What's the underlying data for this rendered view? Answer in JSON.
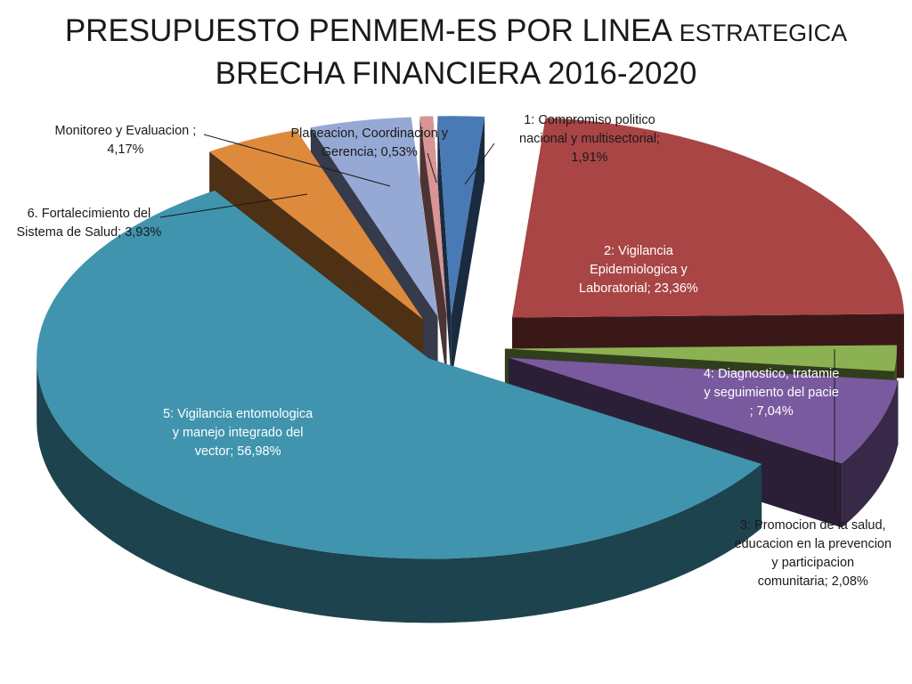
{
  "title": {
    "line1_main": "PRESUPUESTO PENMEM-ES POR LINEA",
    "line1_small": "ESTRATEGICA",
    "line2": "BRECHA FINANCIERA 2016-2020"
  },
  "chart_data": {
    "type": "pie",
    "style": "3d-exploded",
    "title": "PRESUPUESTO PENMEM-ES POR LINEA ESTRATEGICA BRECHA FINANCIERA 2016-2020",
    "slices": [
      {
        "label_lines": [
          "1: Compromiso politico",
          "nacional y multisectorial;",
          "1,91%"
        ],
        "value": 1.91,
        "color": "#4a7ab5"
      },
      {
        "label_lines": [
          "2: Vigilancia",
          "Epidemiologica y",
          "Laboratorial; 23,36%"
        ],
        "value": 23.36,
        "color": "#a94545"
      },
      {
        "label_lines": [
          "3: Promocion de la salud,",
          "educacion en la prevencion",
          "y participacion",
          "comunitaria; 2,08%"
        ],
        "value": 2.08,
        "color": "#8cb152"
      },
      {
        "label_lines": [
          "4: Diagnostico, tratamie",
          "y seguimiento del pacie",
          "; 7,04%"
        ],
        "value": 7.04,
        "color": "#7a5a9e"
      },
      {
        "label_lines": [
          "5: Vigilancia entomologica",
          "y manejo integrado del",
          "vector; 56,98%"
        ],
        "value": 56.98,
        "color": "#4094ae"
      },
      {
        "label_lines": [
          "6. Fortalecimiento del",
          "Sistema de Salud; 3,93%"
        ],
        "value": 3.93,
        "color": "#de8a3c"
      },
      {
        "label_lines": [
          "Monitoreo y Evaluacion ;",
          "4,17%"
        ],
        "value": 4.17,
        "color": "#96a9d4"
      },
      {
        "label_lines": [
          "Planeacion, Coordinacion y",
          "Gerencia; 0,53%"
        ],
        "value": 0.53,
        "color": "#d99594"
      }
    ]
  }
}
